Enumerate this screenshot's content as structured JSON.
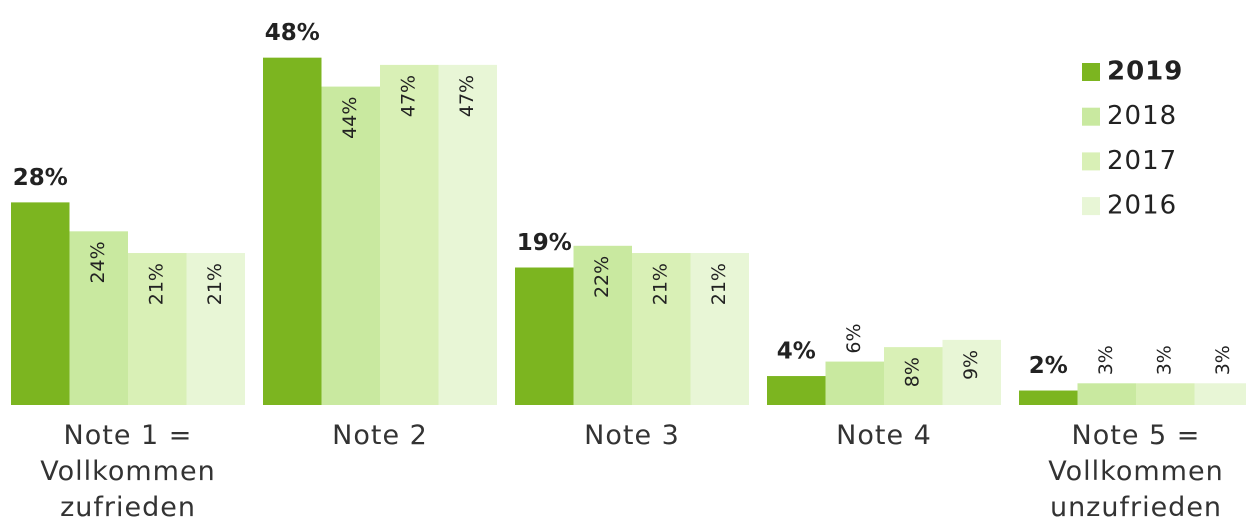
{
  "chart_data": {
    "type": "bar",
    "categories": [
      "Note 1 =\nVollkommen\nzufrieden",
      "Note 2",
      "Note 3",
      "Note 4",
      "Note 5 =\nVollkommen\nunzufrieden"
    ],
    "series": [
      {
        "name": "2019",
        "color": "#7cb520",
        "values": [
          28,
          48,
          19,
          4,
          2
        ],
        "value_labels": [
          "28%",
          "48%",
          "19%",
          "4%",
          "2%"
        ]
      },
      {
        "name": "2018",
        "color": "#c9e9a0",
        "values": [
          24,
          44,
          22,
          6,
          3
        ],
        "value_labels": [
          "24%",
          "44%",
          "22%",
          "6%",
          "3%"
        ]
      },
      {
        "name": "2017",
        "color": "#d9f0b6",
        "values": [
          21,
          47,
          21,
          8,
          3
        ],
        "value_labels": [
          "21%",
          "47%",
          "21%",
          "8%",
          "3%"
        ]
      },
      {
        "name": "2016",
        "color": "#e8f6d6",
        "values": [
          21,
          47,
          21,
          9,
          3
        ],
        "value_labels": [
          "21%",
          "47%",
          "21%",
          "9%",
          "3%"
        ]
      }
    ],
    "ylim": [
      0,
      55
    ],
    "legend": "top-right"
  }
}
